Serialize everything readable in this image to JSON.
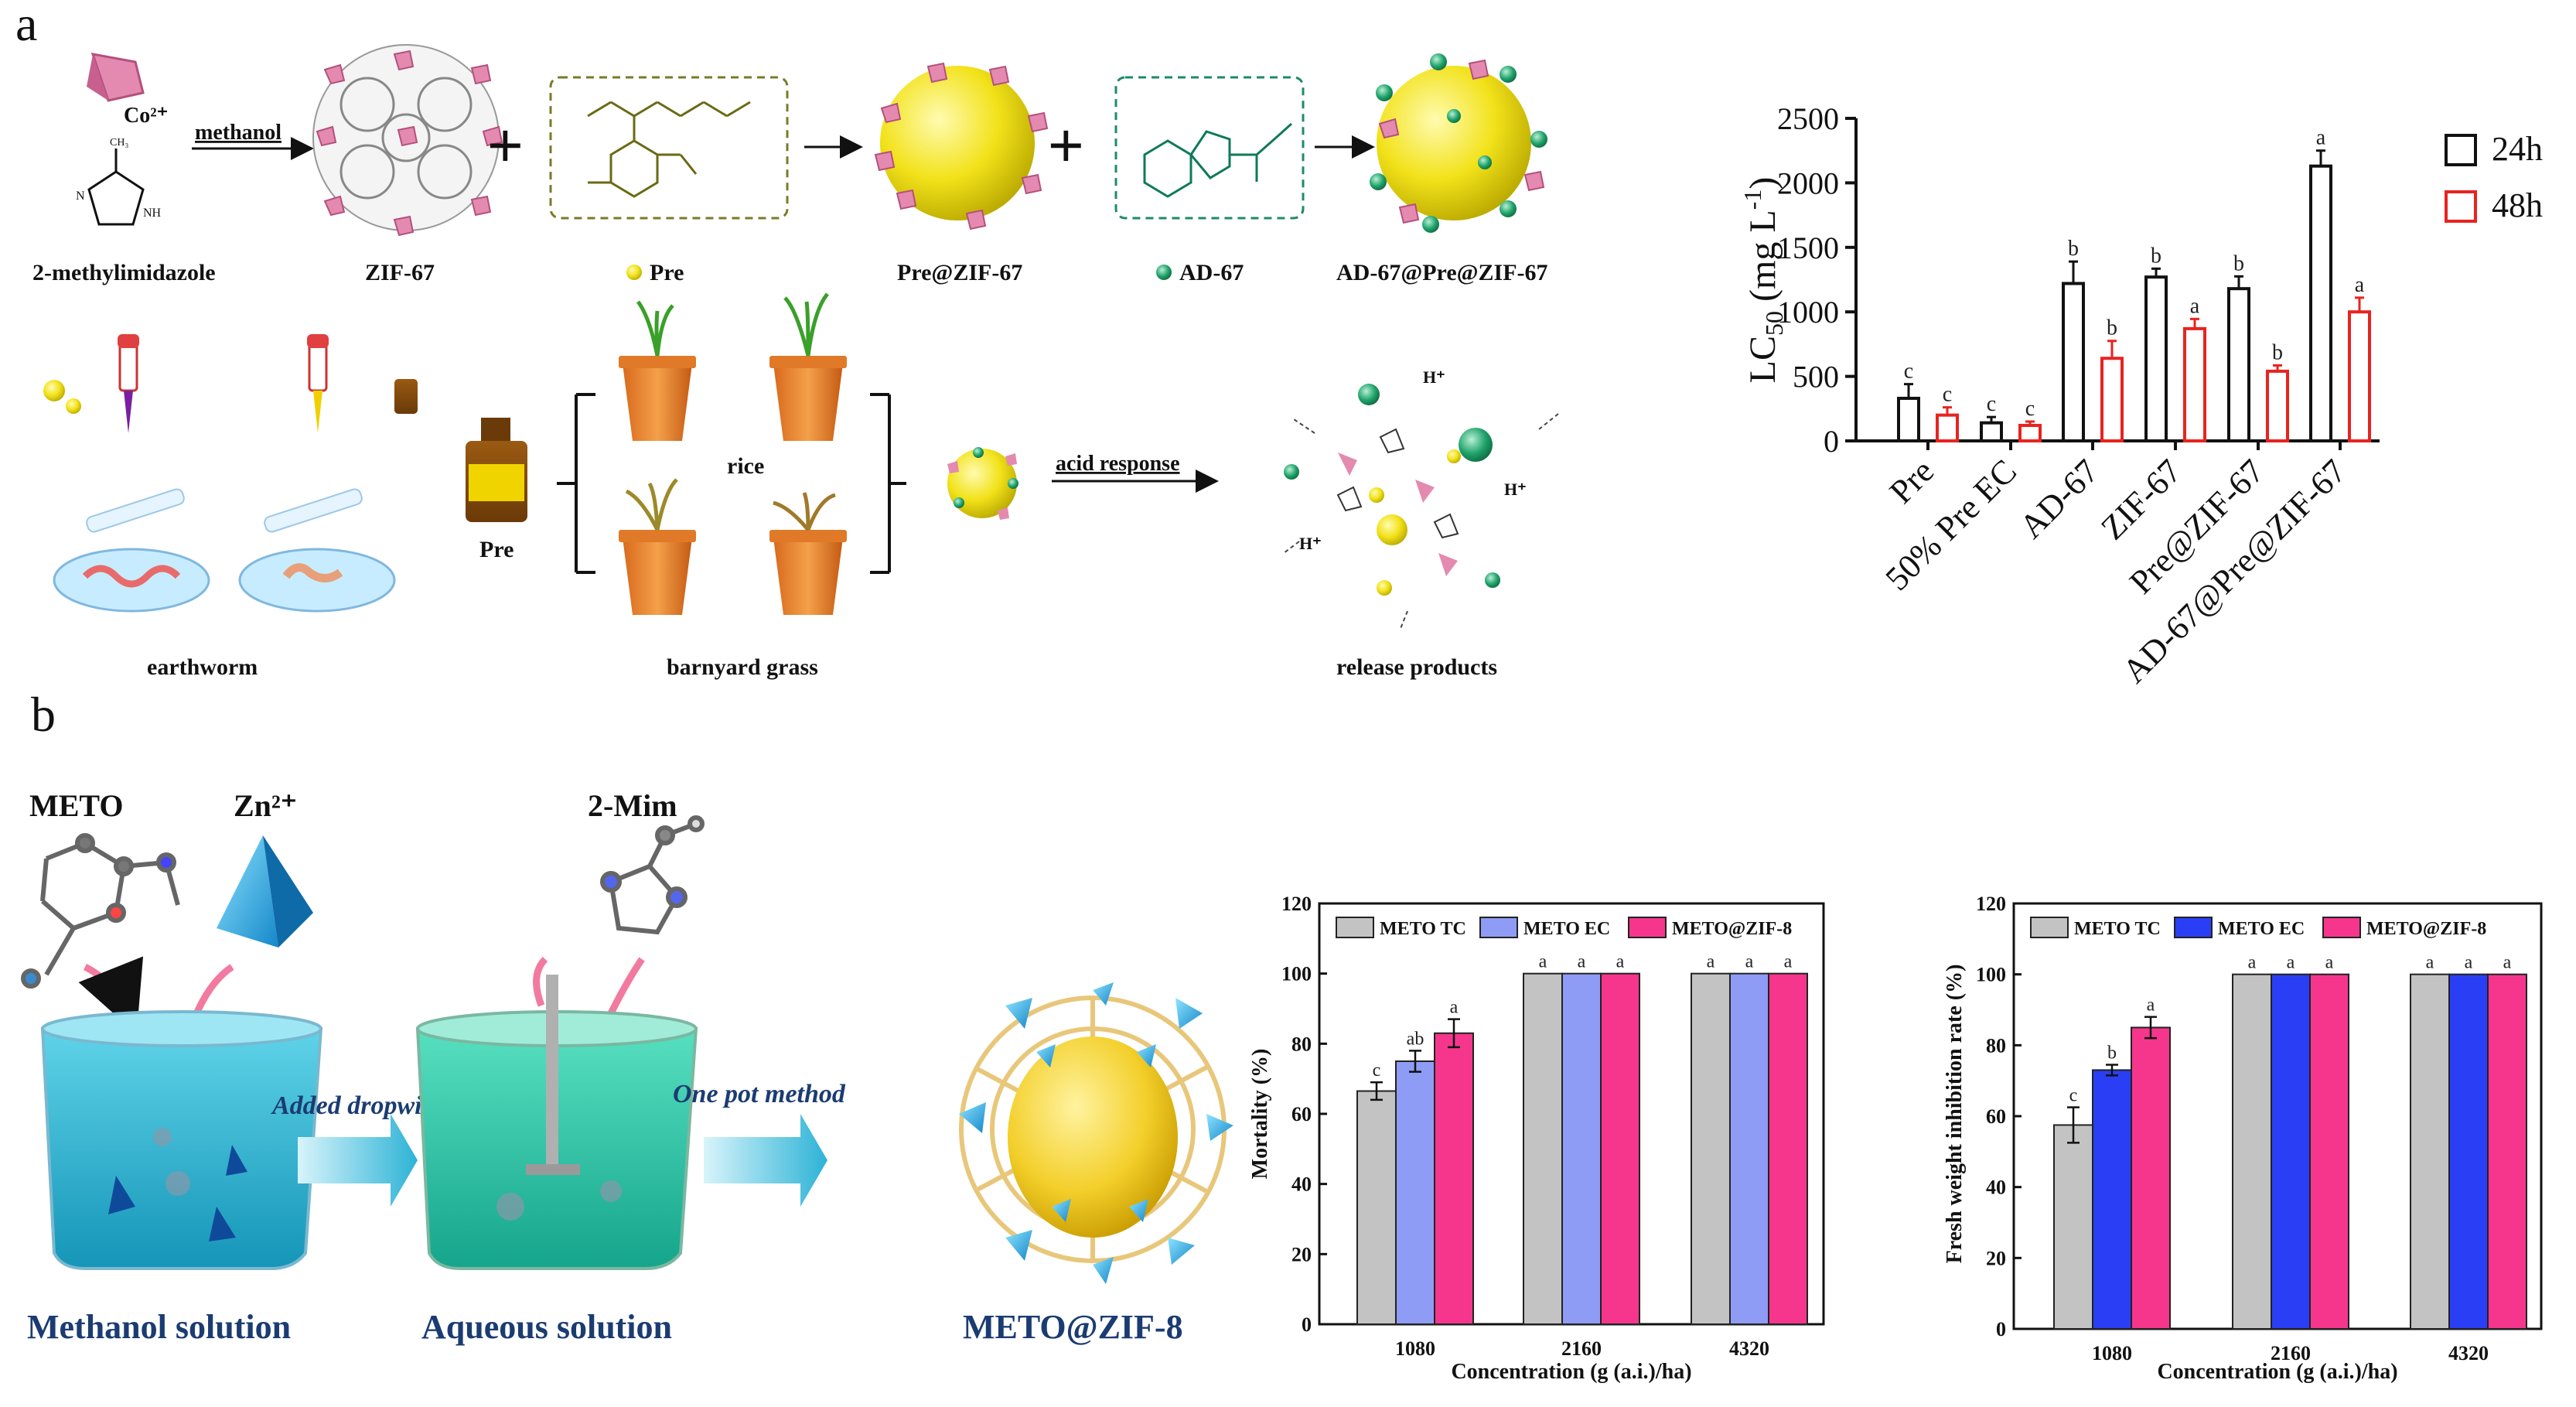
{
  "panels": {
    "a": "a",
    "b": "b"
  },
  "scheme_a": {
    "co_ion": "Co²⁺",
    "ligand": "2-methylimidazole",
    "solvent": "methanol",
    "zif67": "ZIF-67",
    "pre": "Pre",
    "pre_zif": "Pre@ZIF-67",
    "ad67": "AD-67",
    "ad_pre_zif": "AD-67@Pre@ZIF-67",
    "rice": "rice",
    "pre_bottle": "Pre",
    "acid": "acid response",
    "earthworm": "earthworm",
    "barnyard": "barnyard grass",
    "release": "release products",
    "h_plus": "H⁺"
  },
  "scheme_b": {
    "meto": "METO",
    "zn": "Zn²⁺",
    "mim": "2-Mim",
    "dropwise": "Added dropwise",
    "onepot": "One pot method",
    "methanol_sol": "Methanol solution",
    "aqueous_sol": "Aqueous solution",
    "product": "METO@ZIF-8"
  },
  "colors": {
    "s24": "#111111",
    "s48": "#e8231f",
    "tc": "#c3c3c3",
    "ec_light": "#8f9cf5",
    "ec_dark": "#2a3ff5",
    "zif8": "#f5368c"
  },
  "chart_data": [
    {
      "type": "bar",
      "ylabel_main": "LC",
      "ylabel_sub": "50",
      "ylabel_unit": " (mg L",
      "ylabel_exp": "-1",
      "ylabel_close": ")",
      "categories": [
        "Pre",
        "50% Pre EC",
        "AD-67",
        "ZIF-67",
        "Pre@ZIF-67",
        "AD-67@Pre@ZIF-67"
      ],
      "ylim": [
        0,
        2500
      ],
      "yticks": [
        "0",
        "500",
        "1000",
        "1500",
        "2000",
        "2500"
      ],
      "series": [
        {
          "name": "24h",
          "values": [
            330,
            140,
            1220,
            1270,
            1180,
            2130
          ],
          "errors": [
            110,
            45,
            170,
            65,
            95,
            120
          ],
          "letters": [
            "c",
            "c",
            "b",
            "b",
            "b",
            "a"
          ]
        },
        {
          "name": "48h",
          "values": [
            200,
            120,
            640,
            870,
            540,
            1000
          ],
          "errors": [
            60,
            30,
            135,
            75,
            45,
            110
          ],
          "letters": [
            "c",
            "c",
            "b",
            "a",
            "b",
            "a"
          ]
        }
      ]
    },
    {
      "type": "bar",
      "ylabel": "Mortality (%)",
      "xlabel": "Concentration (g (a.i.)/ha)",
      "categories": [
        "1080",
        "2160",
        "4320"
      ],
      "ylim": [
        0,
        120
      ],
      "yticks": [
        "0",
        "20",
        "40",
        "60",
        "80",
        "100",
        "120"
      ],
      "series": [
        {
          "name": "METO TC",
          "values": [
            66.5,
            100,
            100
          ],
          "errors": [
            2.5,
            0,
            0
          ],
          "letters": [
            "c",
            "a",
            "a"
          ]
        },
        {
          "name": "METO EC",
          "values": [
            75,
            100,
            100
          ],
          "errors": [
            3,
            0,
            0
          ],
          "letters": [
            "ab",
            "a",
            "a"
          ]
        },
        {
          "name": "METO@ZIF-8",
          "values": [
            83,
            100,
            100
          ],
          "errors": [
            4,
            0,
            0
          ],
          "letters": [
            "a",
            "a",
            "a"
          ]
        }
      ]
    },
    {
      "type": "bar",
      "ylabel": "Fresh weight inhibition rate (%)",
      "xlabel": "Concentration (g (a.i.)/ha)",
      "categories": [
        "1080",
        "2160",
        "4320"
      ],
      "ylim": [
        0,
        120
      ],
      "yticks": [
        "0",
        "20",
        "40",
        "60",
        "80",
        "100",
        "120"
      ],
      "series": [
        {
          "name": "METO TC",
          "values": [
            57.5,
            100,
            100
          ],
          "errors": [
            5,
            0,
            0
          ],
          "letters": [
            "c",
            "a",
            "a"
          ]
        },
        {
          "name": "METO EC",
          "values": [
            73,
            100,
            100
          ],
          "errors": [
            1.5,
            0,
            0
          ],
          "letters": [
            "b",
            "a",
            "a"
          ]
        },
        {
          "name": "METO@ZIF-8",
          "values": [
            85,
            100,
            100
          ],
          "errors": [
            3,
            0,
            0
          ],
          "letters": [
            "a",
            "a",
            "a"
          ]
        }
      ]
    }
  ]
}
